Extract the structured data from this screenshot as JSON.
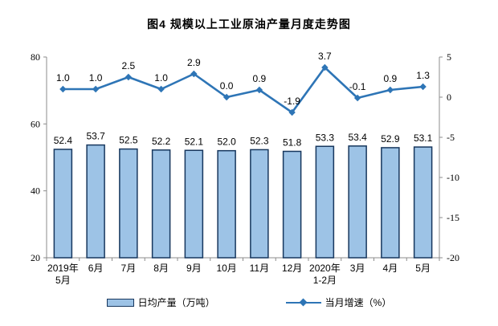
{
  "title": "图4 规模以上工业原油产量月度走势图",
  "chart_data": {
    "type": "bar",
    "subtype": "combo-bar-line-dual-axis",
    "categories": [
      [
        "2019年",
        "5月"
      ],
      [
        "6月"
      ],
      [
        "7月"
      ],
      [
        "8月"
      ],
      [
        "9月"
      ],
      [
        "10月"
      ],
      [
        "11月"
      ],
      [
        "12月"
      ],
      [
        "2020年",
        "1-2月"
      ],
      [
        "3月"
      ],
      [
        "4月"
      ],
      [
        "5月"
      ]
    ],
    "series": [
      {
        "name": "日均产量（万吨）",
        "type": "bar",
        "axis": "left",
        "values": [
          52.4,
          53.7,
          52.5,
          52.2,
          52.1,
          52.0,
          52.3,
          51.8,
          53.3,
          53.4,
          52.9,
          53.1
        ],
        "fill": "#9DC3E6",
        "stroke": "#17375E"
      },
      {
        "name": "当月增速（%）",
        "type": "line",
        "axis": "right",
        "values": [
          1.0,
          1.0,
          2.5,
          1.0,
          2.9,
          0.0,
          0.9,
          -1.9,
          3.7,
          -0.1,
          0.9,
          1.3
        ],
        "color": "#2E75B6"
      }
    ],
    "title": "图4 规模以上工业原油产量月度走势图",
    "xlabel": "",
    "ylabel_left": "日均产量（万吨）",
    "ylabel_right": "当月增速（%）",
    "left_axis": {
      "min": 20,
      "max": 80,
      "ticks": [
        80,
        60,
        40,
        20
      ]
    },
    "right_axis": {
      "min": -20,
      "max": 5,
      "ticks": [
        5,
        0,
        -5,
        -10,
        -15,
        -20
      ]
    },
    "grid": false,
    "legend_position": "bottom",
    "data_labels": true,
    "colors": {
      "bar_fill": "#9DC3E6",
      "bar_stroke": "#17375E",
      "line": "#2E75B6",
      "axis": "#8C8C8C",
      "text": "#000000"
    }
  }
}
